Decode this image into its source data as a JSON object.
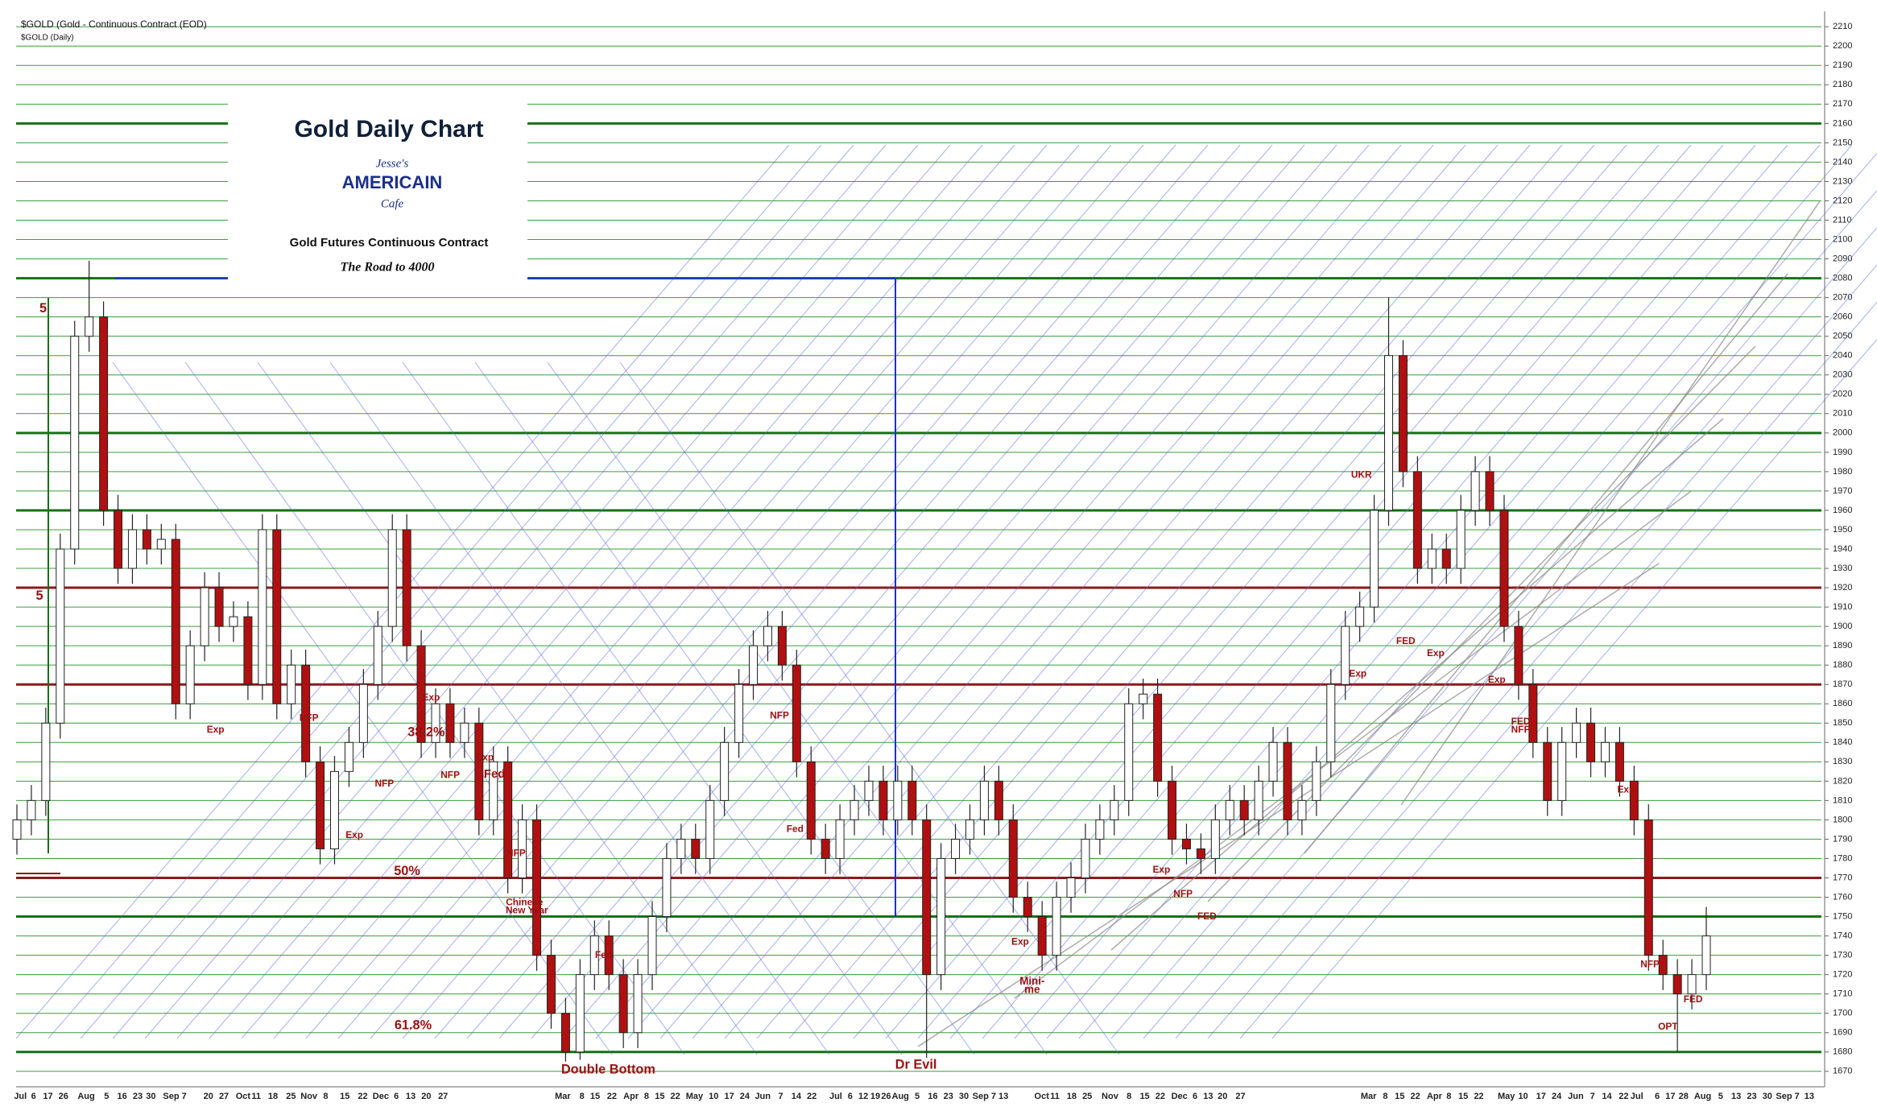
{
  "header": {
    "symbol": "$GOLD (Gold - Continuous Contract (EOD)",
    "period": "$GOLD (Daily)"
  },
  "chart_data": {
    "type": "candlestick",
    "title": "Gold Daily Chart",
    "logo": {
      "top": "Jesse's",
      "middle": "AMERICAIN",
      "bottom": "Cafe"
    },
    "subtitle": "Gold Futures Continuous Contract",
    "tagline": "The Road to 4000",
    "up_color": "#ffffff",
    "down_color": "#b01010",
    "grid": true,
    "grid_color": "#3c9c3c",
    "ylim": [
      1662,
      2218
    ],
    "yticks": [
      1670,
      1680,
      1690,
      1700,
      1710,
      1720,
      1730,
      1740,
      1750,
      1760,
      1770,
      1780,
      1790,
      1800,
      1810,
      1820,
      1830,
      1840,
      1850,
      1860,
      1870,
      1880,
      1890,
      1900,
      1910,
      1920,
      1930,
      1940,
      1950,
      1960,
      1970,
      1980,
      1990,
      2000,
      2010,
      2020,
      2030,
      2040,
      2050,
      2060,
      2070,
      2080,
      2090,
      2100,
      2110,
      2120,
      2130,
      2140,
      2150,
      2160,
      2170,
      2180,
      2190,
      2200,
      2210
    ],
    "levels": [
      {
        "value": 2160,
        "color": "#167016"
      },
      {
        "value": 2080,
        "color": "#167016"
      },
      {
        "value": 2000,
        "color": "#167016"
      },
      {
        "value": 1960,
        "color": "#167016"
      },
      {
        "value": 1920,
        "color": "#8b1a1a"
      },
      {
        "value": 1870,
        "color": "#8b1a1a"
      },
      {
        "value": 1770,
        "color": "#8b1a1a"
      },
      {
        "value": 1750,
        "color": "#167016"
      },
      {
        "value": 1680,
        "color": "#167016"
      }
    ],
    "xlabels": [
      "Jul",
      "6",
      "17",
      "26",
      "Aug",
      "5",
      "16",
      "23",
      "30",
      "Sep 7",
      "20",
      "27",
      "Oct",
      "11",
      "18",
      "25",
      "Nov",
      "8",
      "15",
      "22",
      "Dec",
      "6",
      "13",
      "20",
      "27",
      "Mar",
      "8",
      "15",
      "22",
      "Apr",
      "8",
      "15",
      "22",
      "May",
      "10",
      "17",
      "24",
      "Jun",
      "7",
      "14",
      "22",
      "Jul",
      "6",
      "12",
      "19",
      "26",
      "Aug",
      "5",
      "16",
      "23",
      "30",
      "Sep 7",
      "13",
      "Oct",
      "11",
      "18",
      "25",
      "Nov",
      "8",
      "15",
      "22",
      "Dec",
      "6",
      "13",
      "20",
      "27",
      "Mar",
      "8",
      "15",
      "22",
      "Apr",
      "8",
      "15",
      "22",
      "May",
      "10",
      "17",
      "24",
      "Jun",
      "7",
      "14",
      "22",
      "Jul",
      "6",
      "17",
      "28",
      "Aug",
      "5",
      "13",
      "23",
      "30",
      "Sep 7",
      "13"
    ],
    "open": [
      1790,
      1800,
      1810,
      1850,
      1940,
      2050,
      2060,
      1960,
      1930,
      1950,
      1940,
      1945,
      1860,
      1890,
      1920,
      1900,
      1905,
      1870,
      1950,
      1860,
      1880,
      1830,
      1785,
      1825,
      1840,
      1870,
      1900,
      1950,
      1890,
      1840,
      1860,
      1840,
      1850,
      1800,
      1830,
      1770,
      1800,
      1730,
      1700,
      1680,
      1720,
      1740,
      1720,
      1690,
      1720,
      1750,
      1780,
      1790,
      1780,
      1810,
      1840,
      1870,
      1890,
      1900,
      1880,
      1830,
      1790,
      1780,
      1800,
      1810,
      1820,
      1800,
      1820,
      1800,
      1720,
      1780,
      1790,
      1800,
      1820,
      1800,
      1760,
      1750,
      1730,
      1760,
      1770,
      1790,
      1800,
      1810,
      1860,
      1865,
      1820,
      1790,
      1785,
      1780,
      1800,
      1810,
      1800,
      1820,
      1840,
      1800,
      1810,
      1830,
      1870,
      1900,
      1910,
      1960,
      2040,
      1980,
      1930,
      1940,
      1930,
      1960,
      1980,
      1960,
      1900,
      1870,
      1840,
      1810,
      1840,
      1850,
      1830,
      1840,
      1820,
      1800,
      1730,
      1720,
      1710,
      1720
    ],
    "high": [
      1808,
      1818,
      1858,
      1948,
      2058,
      2089,
      2068,
      1968,
      1958,
      1958,
      1953,
      1953,
      1898,
      1928,
      1928,
      1913,
      1913,
      1958,
      1958,
      1888,
      1888,
      1838,
      1833,
      1848,
      1878,
      1908,
      1958,
      1958,
      1898,
      1868,
      1868,
      1858,
      1858,
      1838,
      1838,
      1808,
      1808,
      1738,
      1708,
      1728,
      1748,
      1748,
      1728,
      1728,
      1758,
      1788,
      1798,
      1798,
      1818,
      1848,
      1878,
      1898,
      1908,
      1908,
      1888,
      1838,
      1798,
      1808,
      1818,
      1828,
      1828,
      1828,
      1828,
      1808,
      1788,
      1798,
      1808,
      1828,
      1828,
      1808,
      1768,
      1758,
      1768,
      1778,
      1798,
      1808,
      1818,
      1868,
      1873,
      1873,
      1828,
      1798,
      1793,
      1808,
      1818,
      1818,
      1828,
      1848,
      1848,
      1818,
      1838,
      1878,
      1908,
      1918,
      1968,
      2070,
      2048,
      1988,
      1948,
      1948,
      1968,
      1988,
      1988,
      1968,
      1908,
      1878,
      1848,
      1848,
      1858,
      1858,
      1848,
      1848,
      1828,
      1808,
      1738,
      1728,
      1728,
      1755
    ],
    "low": [
      1782,
      1792,
      1802,
      1842,
      1932,
      2042,
      1952,
      1922,
      1922,
      1932,
      1932,
      1852,
      1852,
      1882,
      1892,
      1892,
      1862,
      1862,
      1852,
      1852,
      1822,
      1777,
      1777,
      1817,
      1832,
      1862,
      1892,
      1882,
      1832,
      1832,
      1832,
      1832,
      1792,
      1792,
      1762,
      1762,
      1722,
      1692,
      1675,
      1676,
      1712,
      1712,
      1682,
      1682,
      1712,
      1742,
      1772,
      1772,
      1772,
      1802,
      1832,
      1862,
      1882,
      1872,
      1822,
      1782,
      1772,
      1772,
      1792,
      1802,
      1792,
      1792,
      1792,
      1677,
      1712,
      1772,
      1782,
      1792,
      1792,
      1752,
      1742,
      1722,
      1722,
      1752,
      1762,
      1782,
      1792,
      1802,
      1852,
      1812,
      1782,
      1777,
      1772,
      1772,
      1792,
      1792,
      1792,
      1812,
      1792,
      1792,
      1802,
      1822,
      1862,
      1892,
      1902,
      1952,
      1972,
      1922,
      1922,
      1922,
      1922,
      1952,
      1952,
      1892,
      1862,
      1832,
      1802,
      1802,
      1832,
      1822,
      1822,
      1812,
      1792,
      1722,
      1712,
      1680,
      1702,
      1712
    ],
    "close": [
      1800,
      1810,
      1850,
      1940,
      2050,
      2060,
      1960,
      1930,
      1950,
      1940,
      1945,
      1860,
      1890,
      1920,
      1900,
      1905,
      1870,
      1950,
      1860,
      1880,
      1830,
      1785,
      1825,
      1840,
      1870,
      1900,
      1950,
      1890,
      1840,
      1860,
      1840,
      1850,
      1800,
      1830,
      1770,
      1800,
      1730,
      1700,
      1680,
      1720,
      1740,
      1720,
      1690,
      1720,
      1750,
      1780,
      1790,
      1780,
      1810,
      1840,
      1870,
      1890,
      1900,
      1880,
      1830,
      1790,
      1780,
      1800,
      1810,
      1820,
      1800,
      1820,
      1800,
      1720,
      1780,
      1790,
      1800,
      1820,
      1800,
      1760,
      1750,
      1730,
      1760,
      1770,
      1790,
      1800,
      1810,
      1860,
      1865,
      1820,
      1790,
      1785,
      1780,
      1800,
      1810,
      1800,
      1820,
      1840,
      1800,
      1810,
      1830,
      1870,
      1900,
      1910,
      1960,
      2040,
      1980,
      1930,
      1940,
      1930,
      1960,
      1980,
      1960,
      1900,
      1870,
      1840,
      1810,
      1840,
      1850,
      1830,
      1840,
      1820,
      1800,
      1730,
      1720,
      1710,
      1720,
      1740
    ],
    "annotations": [
      "5",
      "5",
      "Exp",
      "NFP",
      "Exp",
      "50%",
      "NFP",
      "38.2%",
      "Exp",
      "NFP",
      "Exp",
      "Fed",
      "NFP",
      "Chinese",
      "New Year",
      "61.8%",
      "Fed",
      "Double Bottom",
      "NFP",
      "Fed",
      "Dr Evil",
      "Exp",
      "Mini-",
      "me",
      "Exp",
      "NFP",
      "FED",
      "UKR",
      "Exp",
      "FED",
      "Exp",
      "Exp",
      "FED",
      "NFP",
      "Exp",
      "NFP",
      "OPT",
      "FED"
    ]
  }
}
